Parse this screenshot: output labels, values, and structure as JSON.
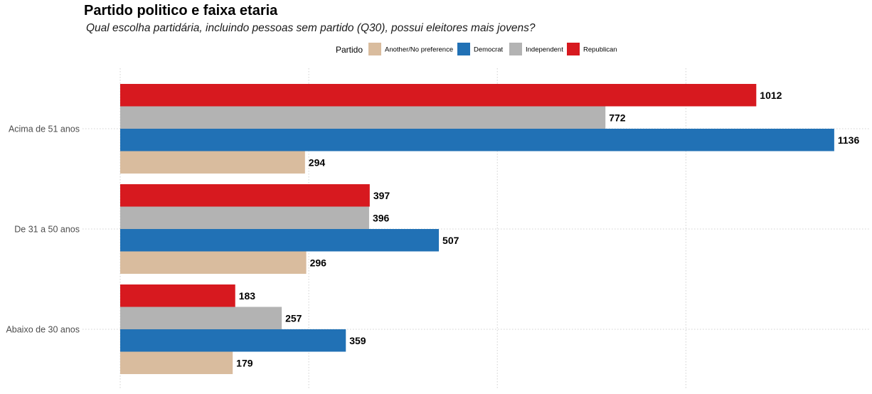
{
  "chart_data": {
    "type": "bar",
    "orientation": "horizontal",
    "title": "Partido politico e faixa etaria",
    "subtitle": "Qual escolha partidária, incluindo pessoas sem partido (Q30), possui eleitores mais jovens?",
    "legend_title": "Partido",
    "legend_position": "top",
    "categories": [
      "Acima de 51 anos",
      "De 31 a 50 anos",
      "Abaixo de 30 anos"
    ],
    "series": [
      {
        "name": "Another/No preference",
        "color": "#d9bc9e",
        "values": [
          294,
          296,
          179
        ]
      },
      {
        "name": "Democrat",
        "color": "#2171b5",
        "values": [
          1136,
          507,
          359
        ]
      },
      {
        "name": "Independent",
        "color": "#b3b3b3",
        "values": [
          772,
          396,
          257
        ]
      },
      {
        "name": "Republican",
        "color": "#d7191f",
        "values": [
          1012,
          397,
          183
        ]
      }
    ],
    "xlim": [
      0,
      1140
    ],
    "x_gridlines": [
      0,
      300,
      600,
      900
    ],
    "x_tick_labels_visible": false,
    "grid": true,
    "data_labels": true
  }
}
